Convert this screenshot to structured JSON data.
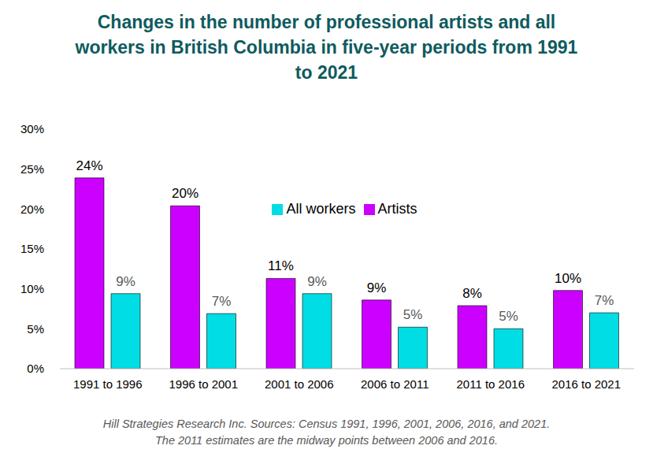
{
  "chart_data": {
    "type": "bar",
    "title": "Changes in the number of professional artists and all workers in British Columbia in five-year periods from 1991 to 2021",
    "notes": [
      "Hill Strategies Research Inc. Sources: Census 1991, 1996, 2001, 2006, 2016, and 2021.",
      "The 2011 estimates are the midway points between 2006 and 2016."
    ],
    "categories": [
      "1991 to 1996",
      "1996 to 2001",
      "2001 to 2006",
      "2006 to 2011",
      "2011 to 2016",
      "2016 to 2021"
    ],
    "series": [
      {
        "name": "Artists",
        "color": "#cc00ff",
        "values": [
          23.9,
          20.4,
          11.3,
          8.6,
          7.9,
          9.8
        ],
        "value_labels": [
          "24%",
          "20%",
          "11%",
          "9%",
          "8%",
          "10%"
        ]
      },
      {
        "name": "All workers",
        "color": "#00dde4",
        "values": [
          9.4,
          6.9,
          9.4,
          5.2,
          5.0,
          7.0
        ],
        "value_labels": [
          "9%",
          "7%",
          "9%",
          "5%",
          "5%",
          "7%"
        ]
      }
    ],
    "ylim": [
      0,
      30
    ],
    "yticks": [
      {
        "value": 0,
        "label": "0%"
      },
      {
        "value": 5,
        "label": "5%"
      },
      {
        "value": 10,
        "label": "10%"
      },
      {
        "value": 15,
        "label": "15%"
      },
      {
        "value": 20,
        "label": "20%"
      },
      {
        "value": 25,
        "label": "25%"
      },
      {
        "value": 30,
        "label": "30%"
      }
    ],
    "grid": false,
    "legend": "top",
    "data_labels": true
  }
}
